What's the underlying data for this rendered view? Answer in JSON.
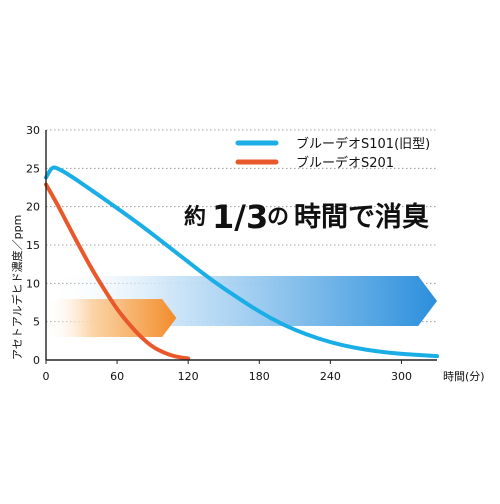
{
  "chart_data": {
    "type": "line",
    "title": "",
    "headline": {
      "prefix": "約",
      "fraction": "1/3",
      "particle": "の",
      "suffix": "時間で消臭"
    },
    "xlabel": "時間(分)",
    "ylabel": "アセトアルデヒド濃度／ppm",
    "xlim": [
      0,
      330
    ],
    "ylim": [
      0,
      30
    ],
    "x_ticks": [
      "0",
      "60",
      "120",
      "180",
      "240",
      "300"
    ],
    "y_ticks": [
      "0",
      "5",
      "10",
      "15",
      "20",
      "25",
      "30"
    ],
    "grid": "dotted horizontal",
    "legend_position": "top-right",
    "series": [
      {
        "name": "ブルーデオS101(旧型)",
        "color": "#1aaee6",
        "x": [
          0,
          5,
          10,
          20,
          40,
          60,
          80,
          100,
          120,
          140,
          160,
          180,
          200,
          220,
          240,
          260,
          280,
          300,
          320,
          330
        ],
        "y": [
          23.8,
          25.2,
          25.0,
          24.1,
          22.0,
          19.8,
          17.6,
          15.2,
          12.8,
          10.4,
          8.3,
          6.3,
          4.6,
          3.3,
          2.3,
          1.6,
          1.1,
          0.8,
          0.6,
          0.5
        ]
      },
      {
        "name": "ブルーデオS201",
        "color": "#e8582a",
        "x": [
          0,
          10,
          20,
          30,
          40,
          50,
          60,
          70,
          80,
          90,
          100,
          110,
          120
        ],
        "y": [
          22.9,
          20.2,
          17.2,
          14.3,
          11.5,
          9.0,
          6.6,
          4.7,
          3.0,
          1.7,
          0.9,
          0.4,
          0.2
        ]
      }
    ],
    "arrows": [
      {
        "from_x": 0,
        "to_x": 330,
        "level": 10,
        "color": "#2b8fdc"
      },
      {
        "from_x": 0,
        "to_x": 110,
        "level": 8,
        "color": "#f28c2a"
      }
    ]
  }
}
